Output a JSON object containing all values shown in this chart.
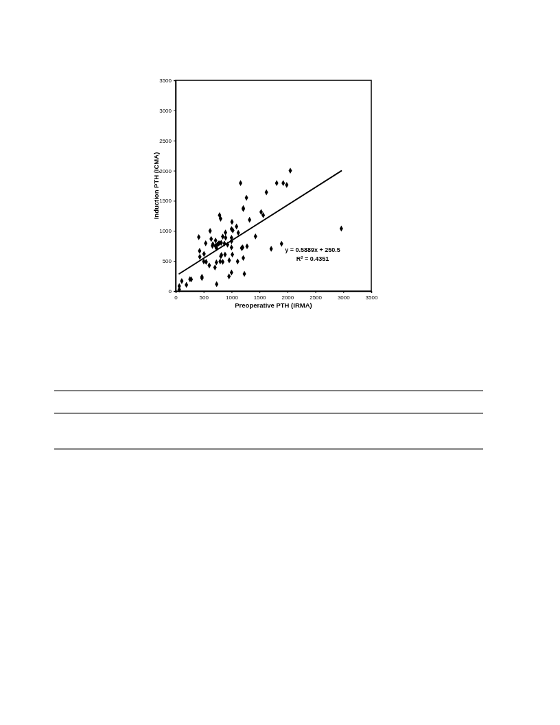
{
  "chart_data": {
    "type": "scatter",
    "xlabel": "Preoperative PTH (IRMA)",
    "ylabel": "Induction PTH (ICMA)",
    "xlim": [
      0,
      3500
    ],
    "xticks": [
      0,
      500,
      1000,
      1500,
      2000,
      2500,
      3000,
      3500
    ],
    "ylim": [
      0,
      3500
    ],
    "yticks": [
      0,
      500,
      1000,
      1500,
      2000,
      2500,
      3000,
      3500
    ],
    "grid": false,
    "marker": "diamond",
    "annotations": [
      "y = 0.5889x + 250.5",
      "R$^{2}$ = 0.4351"
    ],
    "series": [
      {
        "color": "#000000",
        "x": [
          64,
          64,
          109,
          192,
          255,
          278,
          470,
          470,
          413,
          428,
          432,
          507,
          537,
          616,
          635,
          503,
          545,
          601,
          665,
          658,
          703,
          714,
          729,
          733,
          785,
          804,
          744,
          767,
          789,
          815,
          796,
          819,
          808,
          842,
          872,
          883,
          894,
          891,
          842,
          729,
          710,
          928,
          958,
          954,
          999,
          999,
          1014,
          999,
          999,
          1007,
          999,
          1022,
          1089,
          1120,
          1108,
          1161,
          1210,
          1210,
          1180,
          1198,
          1210,
          1229,
          1266,
          1277,
          1322,
          1428,
          1529,
          1567,
          1623,
          1709,
          1807,
          1924,
          1987,
          2051,
          1894,
          2964
        ],
        "values": [
          27,
          84,
          168,
          103,
          198,
          195,
          237,
          218,
          897,
          668,
          569,
          618,
          794,
          1000,
          866,
          492,
          485,
          427,
          779,
          752,
          393,
          840,
          477,
          115,
          1260,
          1202,
          771,
          790,
          798,
          802,
          492,
          599,
          580,
          485,
          790,
          607,
          886,
          973,
          905,
          714,
          752,
          771,
          511,
          244,
          309,
          725,
          607,
          886,
          828,
          1149,
          1031,
          1008,
          1073,
          969,
          492,
          1794,
          1378,
          1363,
          714,
          725,
          550,
          286,
          1550,
          744,
          1183,
          908,
          1313,
          1260,
          1641,
          702,
          1794,
          1794,
          1763,
          2000,
          786,
          1038
        ]
      },
      {
        "type": "line",
        "color": "#000000",
        "marker": "none",
        "line_style": "solid",
        "x": [
          64,
          2964
        ],
        "values": [
          288,
          1996
        ]
      }
    ]
  }
}
